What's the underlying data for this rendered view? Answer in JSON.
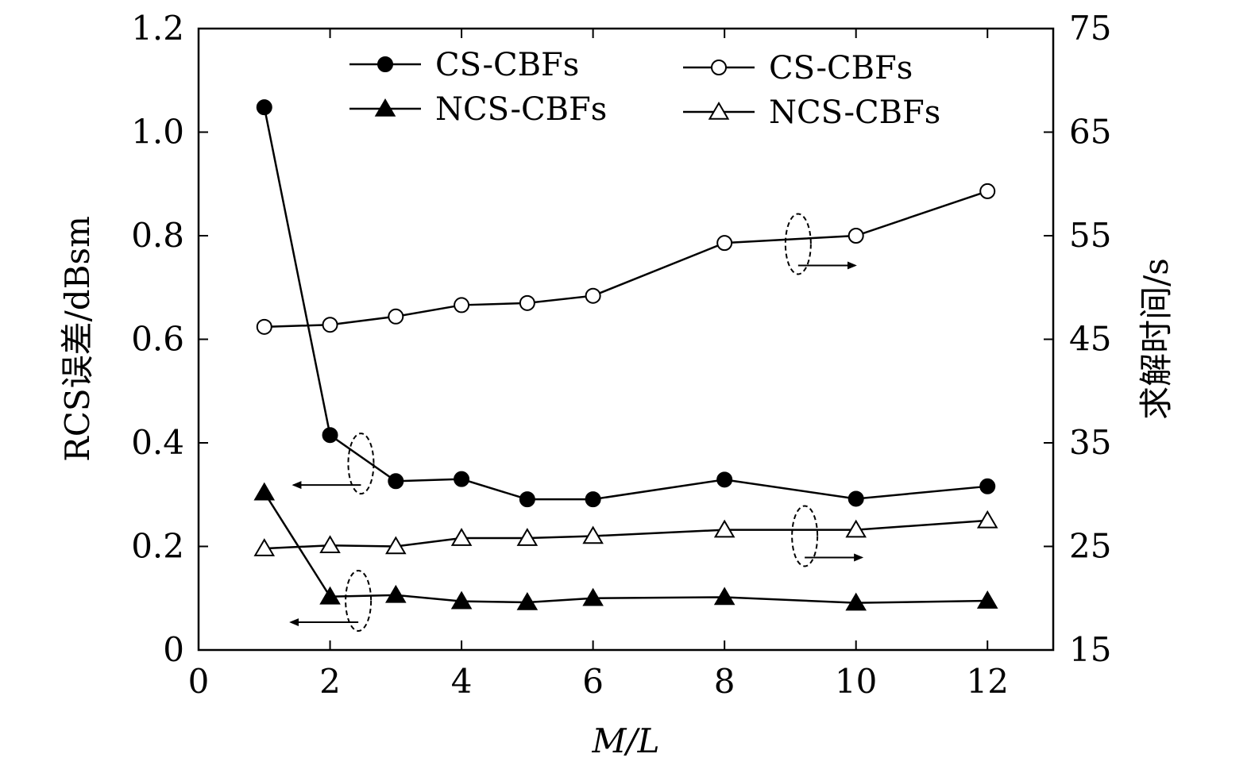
{
  "chart_data": {
    "type": "line",
    "xlabel": "M/L",
    "ylabel_left": "RCS误差/dBsm",
    "ylabel_right": "求解时间/s",
    "xlim": [
      0,
      13
    ],
    "ylim_left": [
      0,
      1.2
    ],
    "ylim_right": [
      15,
      75
    ],
    "x_ticks": [
      0,
      2,
      4,
      6,
      8,
      10,
      12
    ],
    "x_tick_labels": [
      "0",
      "2",
      "4",
      "6",
      "8",
      "10",
      "12"
    ],
    "y_left_ticks": [
      0,
      0.2,
      0.4,
      0.6,
      0.8,
      1.0,
      1.2
    ],
    "y_left_tick_labels": [
      "0",
      "0.2",
      "0.4",
      "0.6",
      "0.8",
      "1.0",
      "1.2"
    ],
    "y_right_ticks": [
      15,
      25,
      35,
      45,
      55,
      65,
      75
    ],
    "y_right_tick_labels": [
      "15",
      "25",
      "35",
      "45",
      "55",
      "65",
      "75"
    ],
    "grid": false,
    "legend_position": "top",
    "series": [
      {
        "name": "CS-CBFs",
        "axis": "left",
        "marker": "filled-circle",
        "x": [
          1,
          2,
          3,
          4,
          5,
          6,
          8,
          10,
          12
        ],
        "values": [
          1.048,
          0.415,
          0.326,
          0.33,
          0.291,
          0.291,
          0.329,
          0.292,
          0.316
        ]
      },
      {
        "name": "NCS-CBFs",
        "axis": "left",
        "marker": "filled-triangle",
        "x": [
          1,
          2,
          3,
          4,
          5,
          6,
          8,
          10,
          12
        ],
        "values": [
          0.304,
          0.103,
          0.106,
          0.094,
          0.092,
          0.1,
          0.102,
          0.091,
          0.095
        ]
      },
      {
        "name": "CS-CBFs",
        "axis": "right",
        "marker": "open-circle",
        "x": [
          1,
          2,
          3,
          4,
          5,
          6,
          8,
          10,
          12
        ],
        "values": [
          46.2,
          46.4,
          47.2,
          48.3,
          48.5,
          49.2,
          54.3,
          55.0,
          59.3
        ]
      },
      {
        "name": "NCS-CBFs",
        "axis": "right",
        "marker": "open-triangle",
        "x": [
          1,
          2,
          3,
          4,
          5,
          6,
          8,
          10,
          12
        ],
        "values": [
          24.8,
          25.1,
          25.0,
          25.8,
          25.8,
          26.0,
          26.6,
          26.6,
          27.5
        ]
      }
    ]
  }
}
